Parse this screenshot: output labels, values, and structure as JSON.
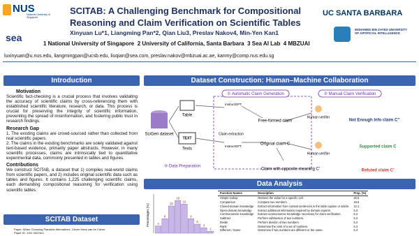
{
  "header": {
    "logos": [
      "NUS",
      "National University of Singapore",
      "sea",
      "UC SANTA BARBARA",
      "MOHAMED BIN ZAYED UNIVERSITY OF ARTIFICIAL INTELLIGENCE"
    ],
    "title": [
      "SCITAB: A Challenging Benchmark for Compositional",
      "Reasoning and Claim Verification on Scientific Tables"
    ],
    "authors": "Xinyuan Lu*1, Liangming Pan*2, Qian Liu3, Preslav Nakov4, Min-Yen Kan1",
    "affiliations": "1 National University of Singapore  2 University of California, Santa Barbara  3 Sea AI Lab  4 MBZUAI",
    "emails": "luxinyuan@u.nus.edu, liangmingpan@ucsb.edu, liuqian@sea.com, preslav.nakov@mbzuai.ac.ae, kanmy@comp.nus.edu.sg"
  },
  "introduction": {
    "heading": "Introduction",
    "motivation_heading": "Motivation",
    "motivation": "Scientific fact-checking is a crucial process that involves validating the accuracy of scientific claims by cross-referencing them with established scientific literature, research, or data. This process is crucial for preserving the integrity of scientific information, preventing the spread of misinformation, and fostering public trust in research findings.",
    "gap_heading": "Research Gap",
    "gaps": [
      "1. The existing claims are crowd-sourced rather than collected from real scientific papers.",
      "2. The claims in the existing benchmarks are solely validated against text-based evidence, primarily paper abstracts. However, in many scientific processes, claims are intrinsically tied to quantitative experimental data, commonly presented in tables and figures."
    ],
    "contributions_heading": "Contributions",
    "contributions": "We construct SCITAB, a dataset that 1) compiles real-world claims from scientific papers, and 2) includes original scientific data such as tables and figures. It contains 1,225 challenging scientific claims, each demanding compositional reasoning for verification using scientific tables."
  },
  "dataset": {
    "heading": "SCITAB Dataset",
    "lines": [
      "Paper: When Choosing Plausible Alternatives, Clever Hans can be Clever",
      "Paper ID: 1911.00225v1"
    ]
  },
  "construction": {
    "heading": "Dataset Construction: Human–Machine Collaboration",
    "steps": [
      "① Automatic Claim Generation",
      "② Manual Claim Verification",
      "③ Data Preparation"
    ],
    "nodes": [
      "SciGen dataset",
      "Table",
      "TEXT",
      "Texts",
      "InstructGPT",
      "InstructGPT",
      "Free-formed claim",
      "Claim extraction",
      "Original claim C",
      "Claim with opposite meaning C′",
      "Human verifier",
      "Human verifier",
      "Not Enough Info claim C″",
      "Supported claim C",
      "Refuted claim C′"
    ]
  },
  "analysis": {
    "heading": "Data Analysis",
    "histogram": {
      "y_label": "Percentages (%)",
      "values": [
        4,
        8,
        15,
        18,
        16,
        8,
        5,
        3,
        1
      ],
      "color": "#c9b6e8",
      "ylim": [
        0,
        20
      ]
    },
    "table": {
      "columns": [
        "Function Names",
        "Description",
        "Prop. (%)"
      ],
      "rows": [
        [
          "Simple lookup",
          "Retrieve the value for a specific cell.",
          "20.6"
        ],
        [
          "Comparison",
          "Compare two numbers.",
          "19.5"
        ],
        [
          "Closed-domain knowledge",
          "Extract information from context sentences in the table caption or article.",
          "12.1"
        ],
        [
          "Open-domain knowledge",
          "Extract additional information required by domain experts.",
          "5.3"
        ],
        [
          "Commonsense knowledge",
          "Extract commonsense knowledge necessary for claim verification.",
          "5.3"
        ],
        [
          "Subtract",
          "Perform subtraction of two numbers.",
          "5.3"
        ],
        [
          "Divide",
          "Perform division of two numbers.",
          "5.3"
        ],
        [
          "Rank",
          "Determine the rank of a set of numbers.",
          "5.3"
        ],
        [
          "Different / Same",
          "Determine if two numbers are different or the same.",
          "5.3"
        ]
      ]
    }
  }
}
